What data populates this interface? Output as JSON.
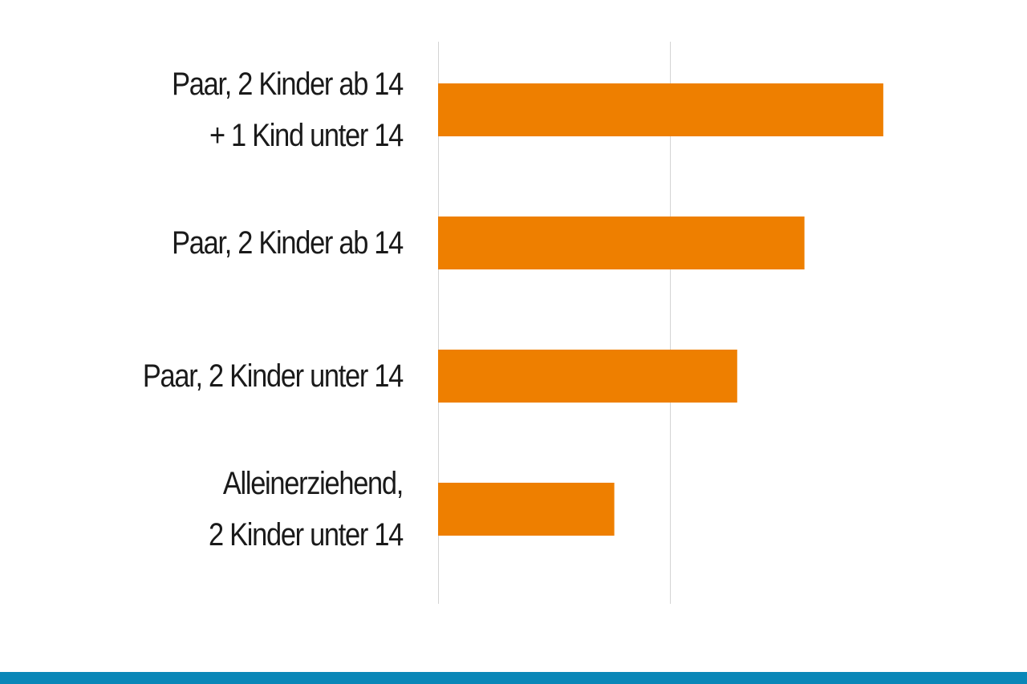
{
  "colors": {
    "bar": "#ee7f00",
    "grid": "#d4d4d4",
    "band": "#0a87b8"
  },
  "chart_data": {
    "type": "bar",
    "orientation": "horizontal",
    "categories": [
      [
        "Paar, 2 Kinder ab 14",
        "+ 1 Kind unter 14"
      ],
      [
        "Paar, 2 Kinder ab 14"
      ],
      [
        "Paar, 2 Kinder unter 14"
      ],
      [
        "Alleinerziehend,",
        "2 Kinder unter 14"
      ]
    ],
    "values": [
      1.92,
      1.58,
      1.29,
      0.76
    ],
    "xlim": [
      0,
      2
    ],
    "gridlines": [
      0,
      1
    ],
    "grid": true,
    "title": "",
    "xlabel": "",
    "ylabel": ""
  }
}
